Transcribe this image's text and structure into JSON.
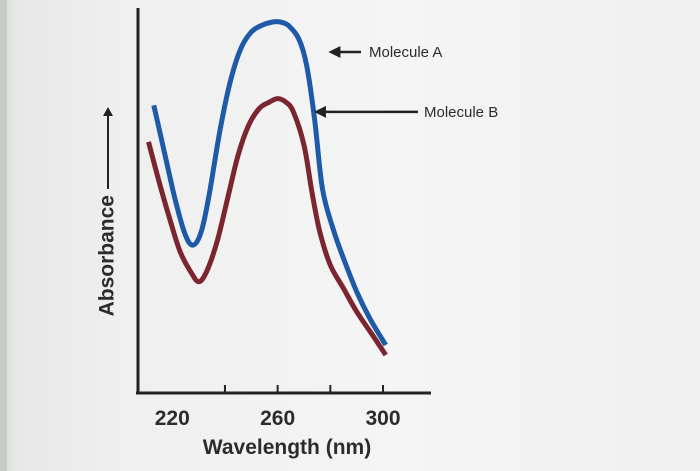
{
  "chart_data": {
    "type": "line",
    "title": "",
    "xlabel": "Wavelength (nm)",
    "ylabel": "Absorbance",
    "x_ticks": [
      220,
      260,
      300
    ],
    "xlim": [
      207,
      311
    ],
    "ylim": [
      0,
      1
    ],
    "grid": false,
    "legend": "none",
    "series": [
      {
        "name": "Molecule A",
        "color": "#1f5aa8",
        "x": [
          213,
          217,
          221,
          225,
          228,
          231,
          234,
          238,
          242,
          246,
          250,
          254,
          258,
          261,
          264,
          268,
          271,
          274,
          277,
          281,
          285,
          290,
          295,
          301
        ],
        "y": [
          0.75,
          0.61,
          0.47,
          0.36,
          0.33,
          0.37,
          0.48,
          0.67,
          0.82,
          0.92,
          0.97,
          0.99,
          1.0,
          1.0,
          0.99,
          0.95,
          0.87,
          0.71,
          0.5,
          0.38,
          0.29,
          0.19,
          0.11,
          0.03
        ]
      },
      {
        "name": "Molecule B",
        "color": "#7a2530",
        "x": [
          211,
          215,
          219,
          223,
          227,
          230,
          233,
          237,
          241,
          245,
          249,
          253,
          257,
          260,
          263,
          266,
          270,
          273,
          276,
          280,
          285,
          290,
          296,
          301
        ],
        "y": [
          0.64,
          0.52,
          0.41,
          0.31,
          0.25,
          0.22,
          0.25,
          0.34,
          0.47,
          0.6,
          0.69,
          0.74,
          0.76,
          0.77,
          0.76,
          0.73,
          0.63,
          0.49,
          0.37,
          0.27,
          0.2,
          0.13,
          0.06,
          0.0
        ]
      }
    ],
    "annotations": [
      {
        "text": "Molecule A",
        "series": 0,
        "x": 277,
        "y": 0.91
      },
      {
        "text": "Molecule B",
        "series": 1,
        "x": 270,
        "y": 0.73
      }
    ]
  }
}
